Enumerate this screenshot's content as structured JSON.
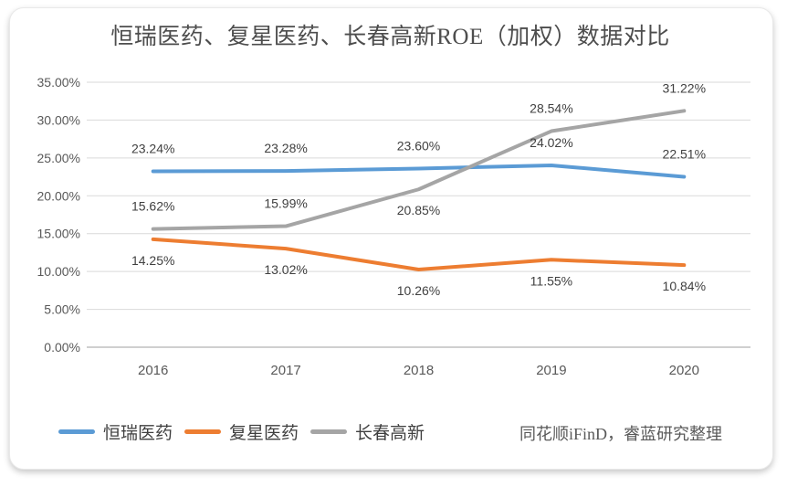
{
  "source_note": "同花顺iFinD，睿蓝研究整理",
  "colors": {
    "card_bg": "#ffffff",
    "grid": "#d9d9d9",
    "axis_line": "#bfbfbf",
    "tick_text": "#595959",
    "x_label_text": "#595959",
    "data_label_text": "#404040",
    "title_text": "#4d4d4d",
    "legend_text": "#3f3f3f",
    "source_text": "#595959"
  },
  "chart_data": {
    "type": "line",
    "title": "恒瑞医药、复星医药、长春高新ROE（加权）数据对比",
    "categories": [
      "2016",
      "2017",
      "2018",
      "2019",
      "2020"
    ],
    "series": [
      {
        "name": "恒瑞医药",
        "color": "#5B9BD5",
        "values": [
          23.24,
          23.28,
          23.6,
          24.02,
          22.51
        ],
        "labels": [
          "23.24%",
          "23.28%",
          "23.60%",
          "24.02%",
          "22.51%"
        ],
        "label_sides": [
          "above",
          "above",
          "above",
          "above",
          "above"
        ]
      },
      {
        "name": "复星医药",
        "color": "#ED7D31",
        "values": [
          14.25,
          13.02,
          10.26,
          11.55,
          10.84
        ],
        "labels": [
          "14.25%",
          "13.02%",
          "10.26%",
          "11.55%",
          "10.84%"
        ],
        "label_sides": [
          "below",
          "below",
          "below",
          "below",
          "below"
        ]
      },
      {
        "name": "长春高新",
        "color": "#A5A5A5",
        "values": [
          15.62,
          15.99,
          20.85,
          28.54,
          31.22
        ],
        "labels": [
          "15.62%",
          "15.99%",
          "20.85%",
          "28.54%",
          "31.22%"
        ],
        "label_sides": [
          "above",
          "above",
          "below",
          "above",
          "above"
        ]
      }
    ],
    "y_axis": {
      "min": 0,
      "max": 35,
      "step": 5,
      "tick_labels": [
        "0.00%",
        "5.00%",
        "10.00%",
        "15.00%",
        "20.00%",
        "25.00%",
        "30.00%",
        "35.00%"
      ]
    },
    "grid": true,
    "legend_position": "bottom"
  }
}
